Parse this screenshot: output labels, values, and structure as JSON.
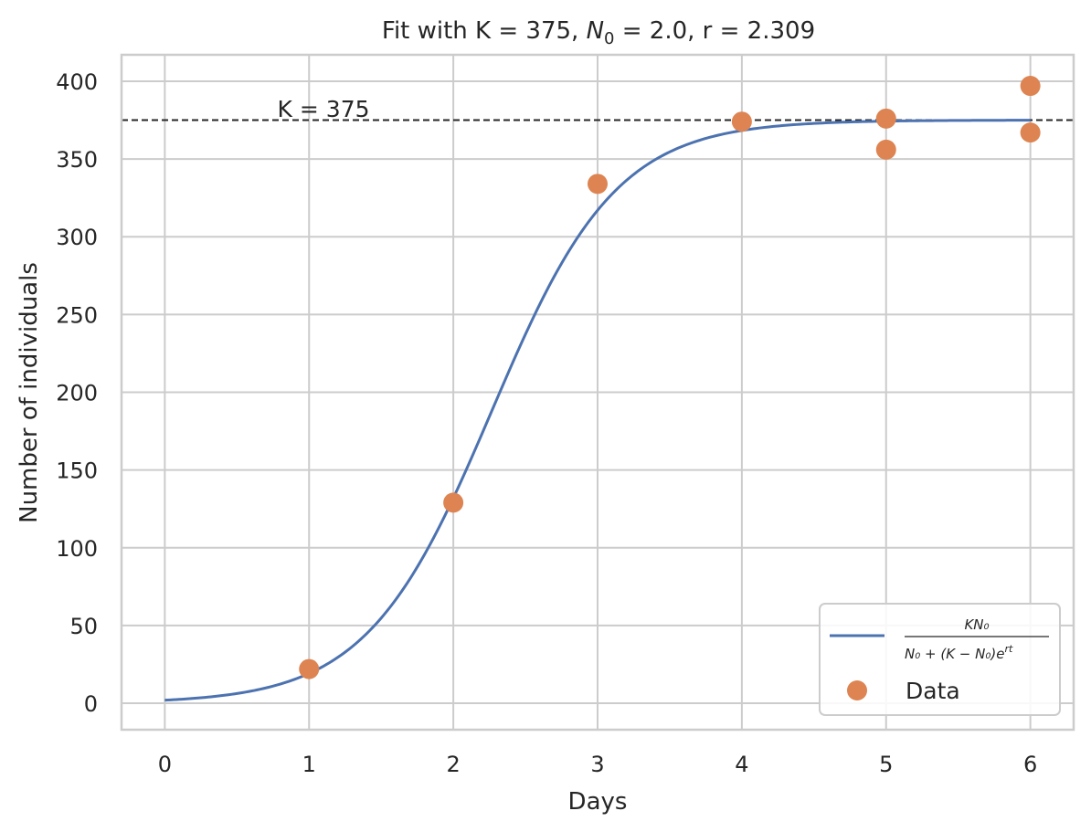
{
  "chart_data": {
    "type": "line",
    "title": {
      "prefix": "Fit with K = 375, ",
      "n0_symbol": "N",
      "n0_subscript": "0",
      "suffix": " = 2.0, r = 2.309"
    },
    "xlabel": "Days",
    "ylabel": "Number of individuals",
    "xlim": [
      -0.3,
      6.3
    ],
    "ylim": [
      -17,
      417
    ],
    "xticks": [
      0,
      1,
      2,
      3,
      4,
      5,
      6
    ],
    "yticks": [
      0,
      50,
      100,
      150,
      200,
      250,
      300,
      350,
      400
    ],
    "grid": true,
    "legend_position": "lower-right",
    "annotation": {
      "text": "K = 375",
      "x": 1.1,
      "y": 377
    },
    "fit": {
      "K": 375,
      "N0": 2.0,
      "r": 2.309,
      "x_range": [
        0,
        6
      ],
      "color": "#4c72b0",
      "legend_label": {
        "numerator": "KN₀",
        "denominator": "N₀ + (K − N₀)e",
        "exponent": "rt"
      }
    },
    "capacity_line": {
      "y": 375,
      "color": "#262626"
    },
    "series": [
      {
        "name": "Data",
        "color": "#dd8452",
        "x": [
          1,
          2,
          3,
          4,
          5,
          5,
          6,
          6
        ],
        "y": [
          22,
          129,
          334,
          374,
          376,
          356,
          397,
          367
        ]
      }
    ]
  }
}
